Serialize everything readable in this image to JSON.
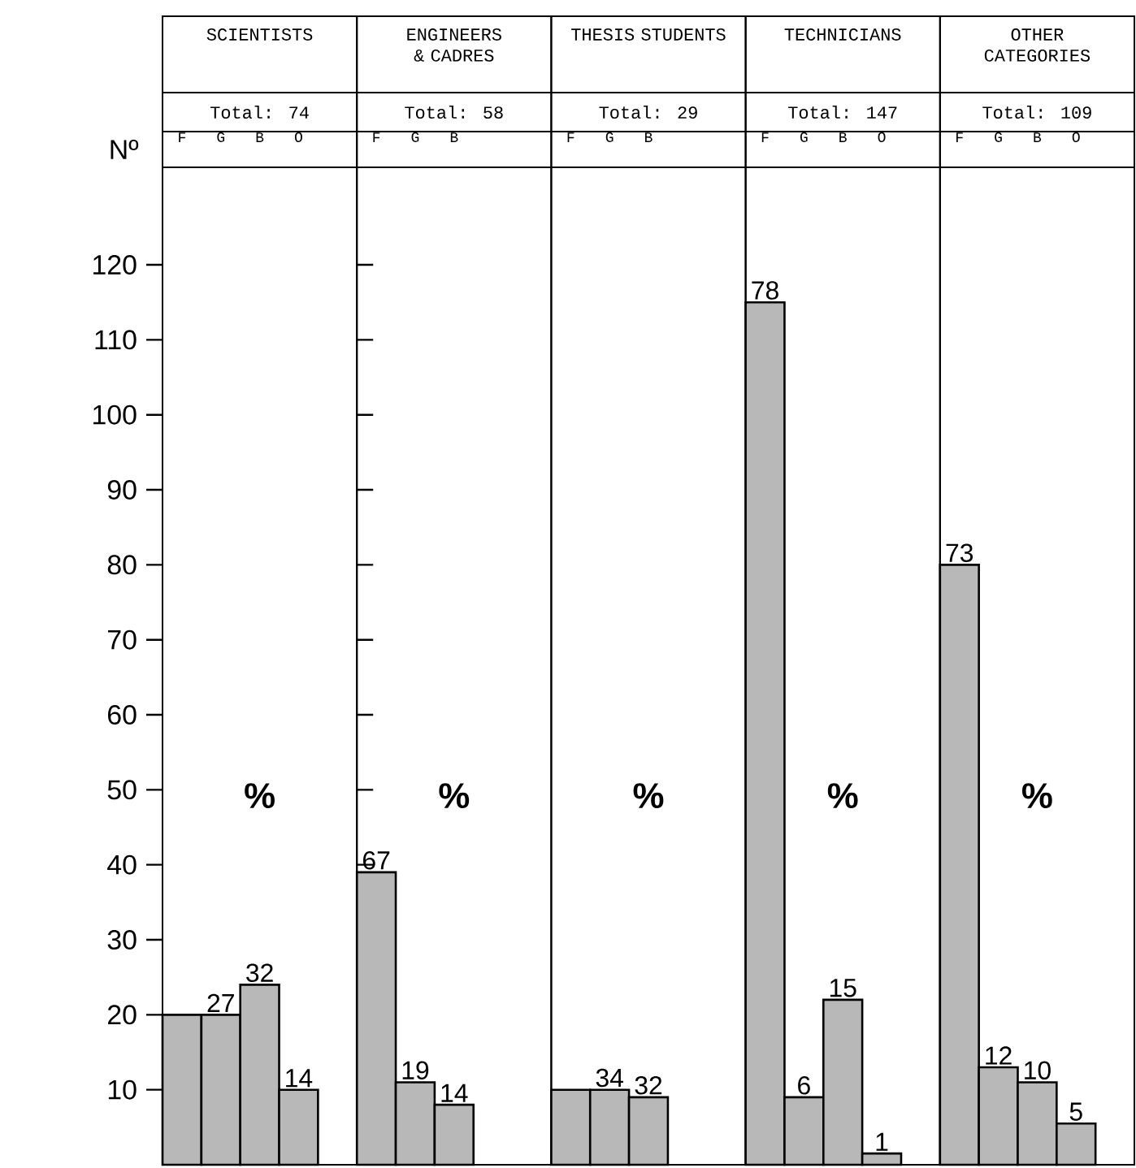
{
  "chart_data": [
    {
      "type": "bar",
      "title": "SCIENTISTS",
      "subtitle": "Total: 74",
      "ylabel": "Nº",
      "categories": [
        "F",
        "G",
        "B",
        "O"
      ],
      "values": [
        20,
        20,
        24,
        10
      ],
      "color": "#b8b8b8",
      "annotations": [
        "%",
        {
          "text": "27",
          "x": "G",
          "y": 20
        },
        {
          "text": "32",
          "x": "B",
          "y": 24
        },
        {
          "text": "14",
          "x": "O",
          "y": 10
        }
      ],
      "ylim": [
        0,
        133
      ],
      "yticks": [
        10,
        20,
        30,
        40,
        50,
        60,
        70,
        80,
        90,
        100,
        110,
        120
      ]
    },
    {
      "type": "bar",
      "title": "ENGINEERS & CADRES",
      "subtitle": "Total: 58",
      "categories": [
        "F",
        "G",
        "B"
      ],
      "values": [
        39,
        11,
        8
      ],
      "color": "#b8b8b8",
      "annotations": [
        "%",
        {
          "text": "67",
          "x": "F",
          "y": 39
        },
        {
          "text": "19",
          "x": "G",
          "y": 11
        },
        {
          "text": "14",
          "x": "B",
          "y": 8
        }
      ],
      "ylim": [
        0,
        133
      ],
      "tick_labels": "x"
    },
    {
      "type": "bar",
      "title": "THESIS STUDENTS",
      "subtitle": "Total: 29",
      "categories": [
        "F",
        "G",
        "B"
      ],
      "values": [
        10,
        10,
        9
      ],
      "color": "#b8b8b8",
      "annotations": [
        "%",
        {
          "text": "34",
          "x": "G",
          "y": 10
        },
        {
          "text": "32",
          "x": "B",
          "y": 9
        }
      ],
      "ylim": [
        0,
        133
      ],
      "tick_labels": "x"
    },
    {
      "type": "bar",
      "title": "TECHNICIANS",
      "subtitle": "Total: 147",
      "categories": [
        "F",
        "G",
        "B",
        "O"
      ],
      "values": [
        115,
        9,
        22,
        1.5
      ],
      "color": "#b8b8b8",
      "annotations": [
        "%",
        {
          "text": "78",
          "x": "F",
          "y": 115
        },
        {
          "text": "6",
          "x": "G",
          "y": 9
        },
        {
          "text": "15",
          "x": "B",
          "y": 22
        },
        {
          "text": "1",
          "x": "O",
          "y": 1.5
        }
      ],
      "ylim": [
        0,
        133
      ],
      "tick_labels": "x"
    },
    {
      "type": "bar",
      "title": "OTHER CATEGORIES",
      "subtitle": "Total: 109",
      "categories": [
        "F",
        "G",
        "B",
        "O"
      ],
      "values": [
        80,
        13,
        11,
        5.5
      ],
      "color": "#b8b8b8",
      "annotations": [
        "%",
        {
          "text": "73",
          "x": "F",
          "y": 80
        },
        {
          "text": "12",
          "x": "G",
          "y": 13
        },
        {
          "text": "10",
          "x": "B",
          "y": 11
        },
        {
          "text": "5",
          "x": "O",
          "y": 5.5
        }
      ],
      "ylim": [
        0,
        133
      ],
      "tick_labels": "x"
    }
  ]
}
